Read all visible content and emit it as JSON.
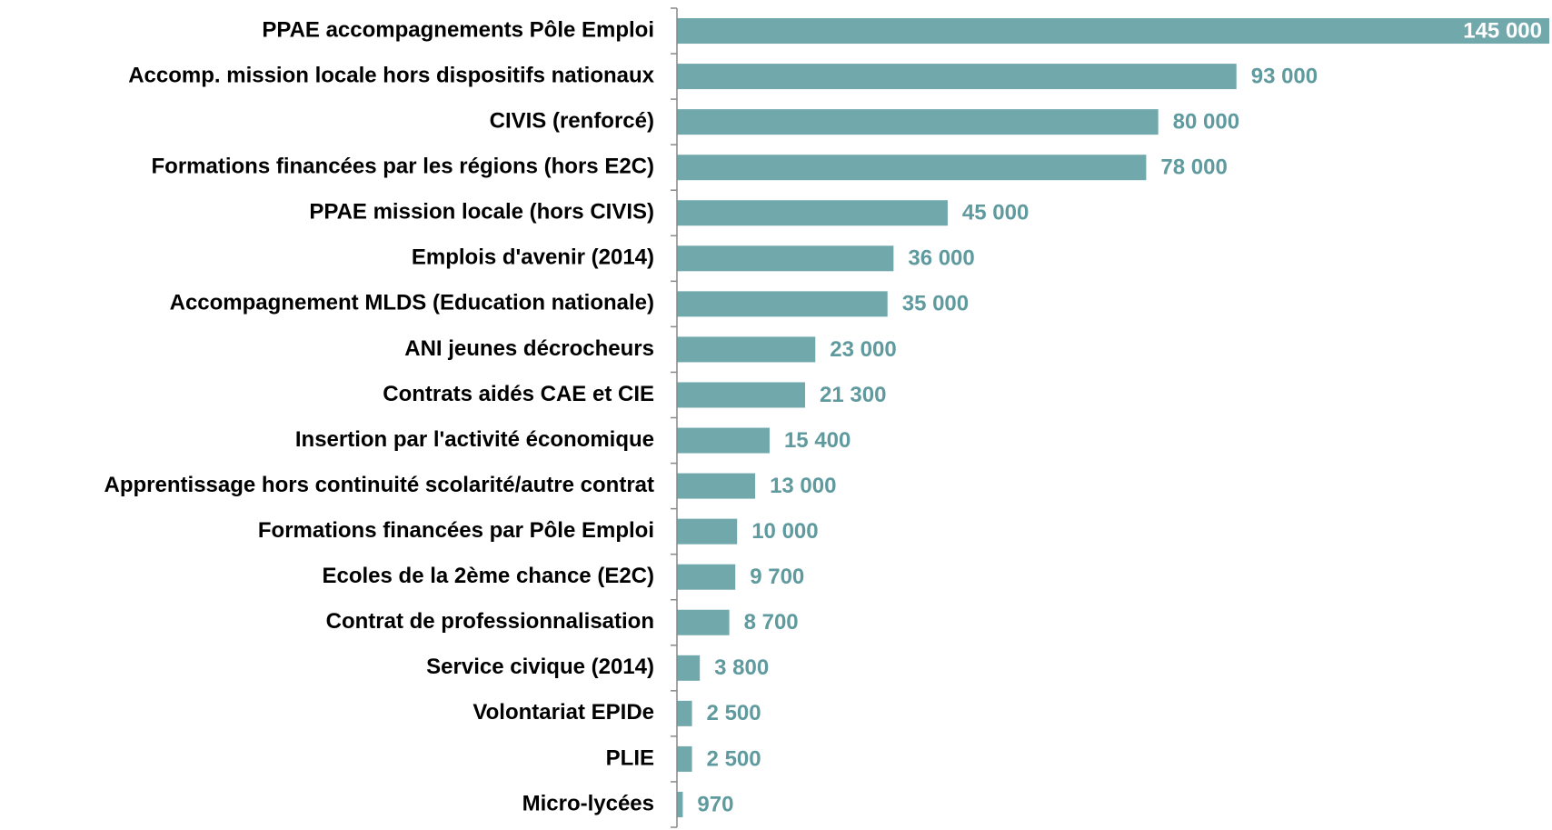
{
  "chart_data": {
    "type": "barh",
    "categories": [
      "PPAE accompagnements Pôle Emploi",
      "Accomp. mission locale hors dispositifs nationaux",
      "CIVIS (renforcé)",
      "Formations financées par les régions (hors E2C)",
      "PPAE mission locale (hors CIVIS)",
      "Emplois d'avenir (2014)",
      "Accompagnement MLDS (Education nationale)",
      "ANI jeunes décrocheurs",
      "Contrats aidés CAE et CIE",
      "Insertion par l'activité économique",
      "Apprentissage hors continuité scolarité/autre contrat",
      "Formations financées par Pôle Emploi",
      "Ecoles de la 2ème chance (E2C)",
      "Contrat de professionnalisation",
      "Service civique (2014)",
      "Volontariat EPIDe",
      "PLIE",
      "Micro-lycées"
    ],
    "values": [
      145000,
      93000,
      80000,
      78000,
      45000,
      36000,
      35000,
      23000,
      21300,
      15400,
      13000,
      10000,
      9700,
      8700,
      3800,
      2500,
      2500,
      970
    ],
    "value_labels": [
      "145 000",
      "93 000",
      "80 000",
      "78 000",
      "45 000",
      "36 000",
      "35 000",
      "23 000",
      "21 300",
      "15 400",
      "13 000",
      "10 000",
      "9 700",
      "8 700",
      "3 800",
      "2 500",
      "2 500",
      "970"
    ],
    "color": "#70a8ac",
    "label_color": "#5f9a9e",
    "xlim": [
      0,
      145000
    ]
  }
}
